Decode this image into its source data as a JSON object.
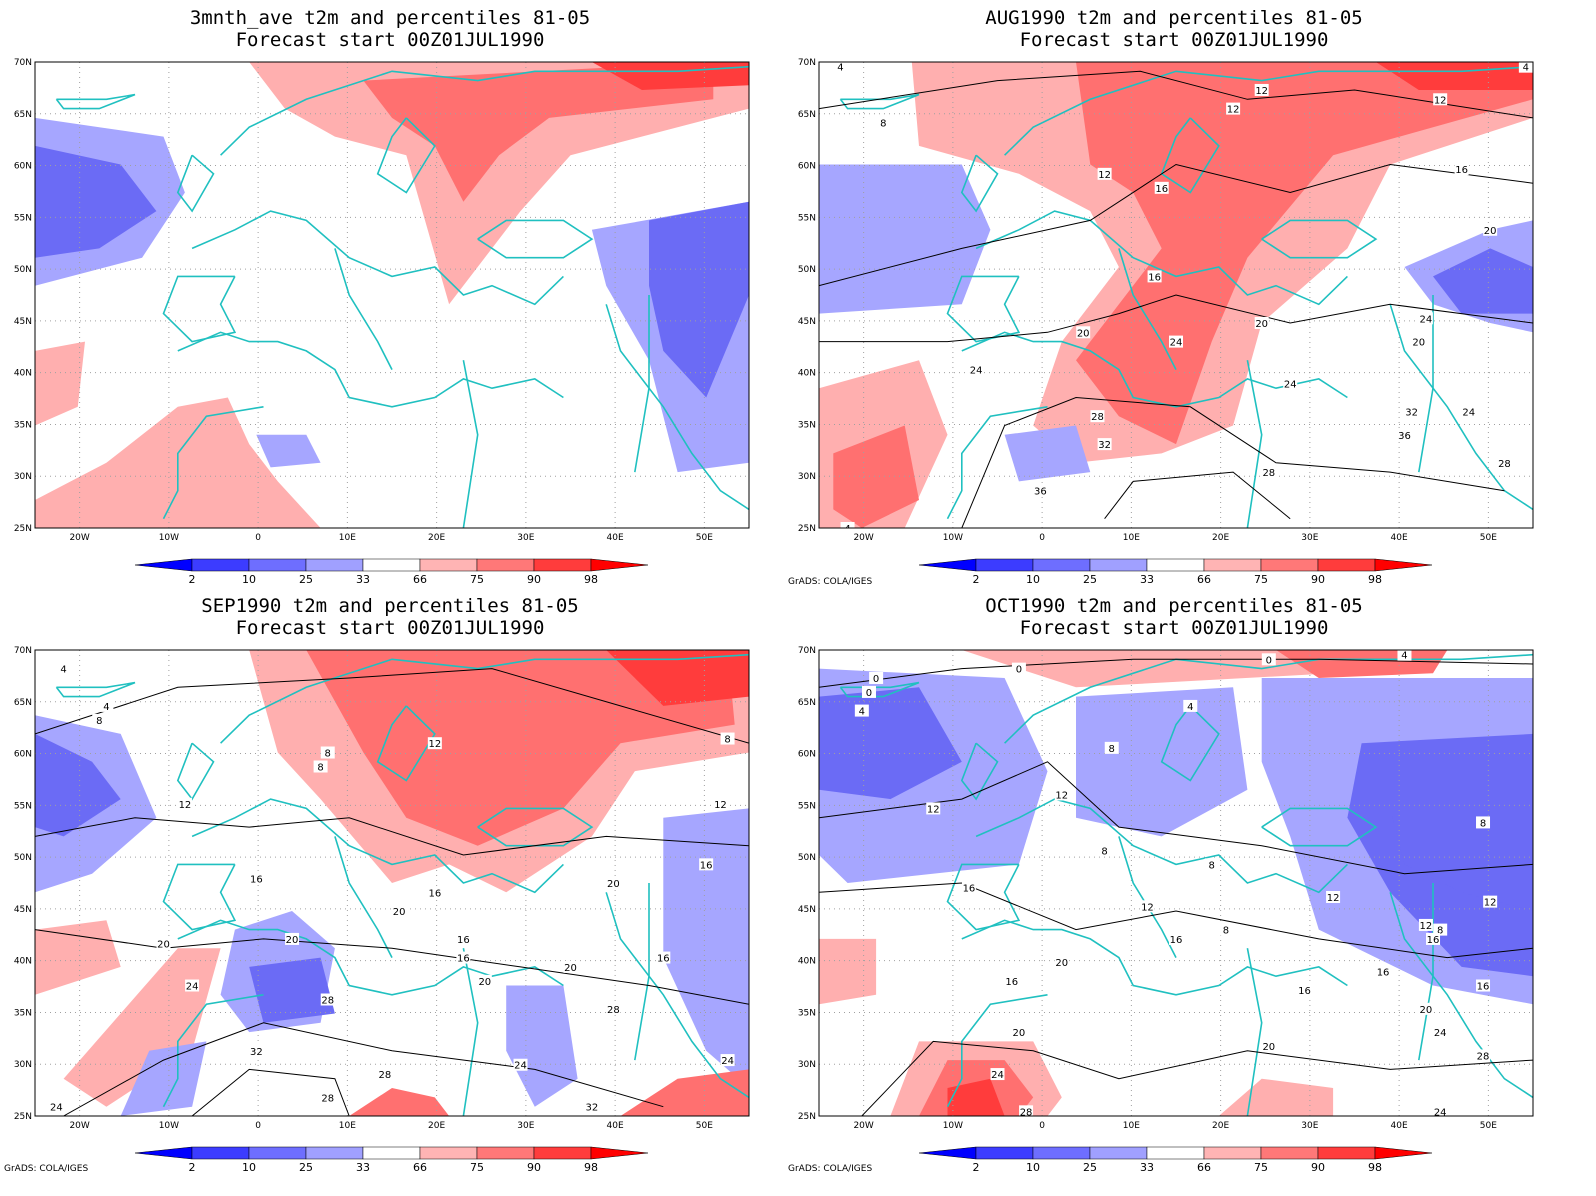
{
  "panels": [
    {
      "title": "3mnth_ave t2m and percentiles 81-05",
      "subtitle": "Forecast start 00Z01JUL1990",
      "contour_labels": [],
      "credit": ""
    },
    {
      "title": "AUG1990 t2m and percentiles 81-05",
      "subtitle": "Forecast start 00Z01JUL1990",
      "contour_labels": [
        "4",
        "8",
        "12",
        "12",
        "12",
        "12",
        "16",
        "16",
        "16",
        "20",
        "20",
        "20",
        "20",
        "24",
        "24",
        "24",
        "24",
        "24",
        "28",
        "28",
        "32",
        "32",
        "36",
        "36",
        "28",
        "4",
        "4"
      ],
      "credit": "GrADS: COLA/IGES"
    },
    {
      "title": "SEP1990 t2m and percentiles 81-05",
      "subtitle": "Forecast start 00Z01JUL1990",
      "contour_labels": [
        "4",
        "4",
        "8",
        "8",
        "8",
        "8",
        "12",
        "12",
        "12",
        "16",
        "16",
        "16",
        "16",
        "16",
        "16",
        "20",
        "20",
        "20",
        "20",
        "20",
        "20",
        "24",
        "24",
        "24",
        "24",
        "28",
        "28",
        "28",
        "28",
        "32",
        "32"
      ],
      "credit": "GrADS: COLA/IGES"
    },
    {
      "title": "OCT1990 t2m and percentiles 81-05",
      "subtitle": "Forecast start 00Z01JUL1990",
      "contour_labels": [
        "0",
        "0",
        "0",
        "0",
        "4",
        "4",
        "4",
        "8",
        "8",
        "8",
        "8",
        "8",
        "8",
        "12",
        "12",
        "12",
        "12",
        "12",
        "12",
        "16",
        "16",
        "16",
        "16",
        "16",
        "16",
        "16",
        "20",
        "20",
        "20",
        "20",
        "24",
        "24",
        "28",
        "28",
        "24"
      ],
      "credit": "GrADS: COLA/IGES"
    }
  ],
  "map": {
    "lat_labels": [
      "70N",
      "65N",
      "60N",
      "55N",
      "50N",
      "45N",
      "40N",
      "35N",
      "30N",
      "25N"
    ],
    "lon_labels": [
      "20W",
      "10W",
      "0",
      "10E",
      "20E",
      "30E",
      "40E",
      "50E"
    ],
    "lon_range": [
      -25,
      55
    ],
    "lat_range": [
      25,
      70
    ]
  },
  "colorbar": {
    "labels": [
      "2",
      "10",
      "25",
      "33",
      "66",
      "75",
      "90",
      "98"
    ],
    "colors": [
      "#0000ff",
      "#3c3cff",
      "#6e6eff",
      "#a0a0ff",
      "#ffffff",
      "#ffb4b4",
      "#ff7878",
      "#ff3c3c",
      "#ff0000"
    ]
  },
  "colors": {
    "coast": "#20c0c0",
    "contour": "#000000",
    "cold_strong": "#6b6bf5",
    "cold_weak": "#a6a6ff",
    "warm_weak": "#ffafaf",
    "warm_mid": "#ff7070",
    "warm_strong": "#ff3c3c",
    "grid": "#a0a0a0"
  }
}
